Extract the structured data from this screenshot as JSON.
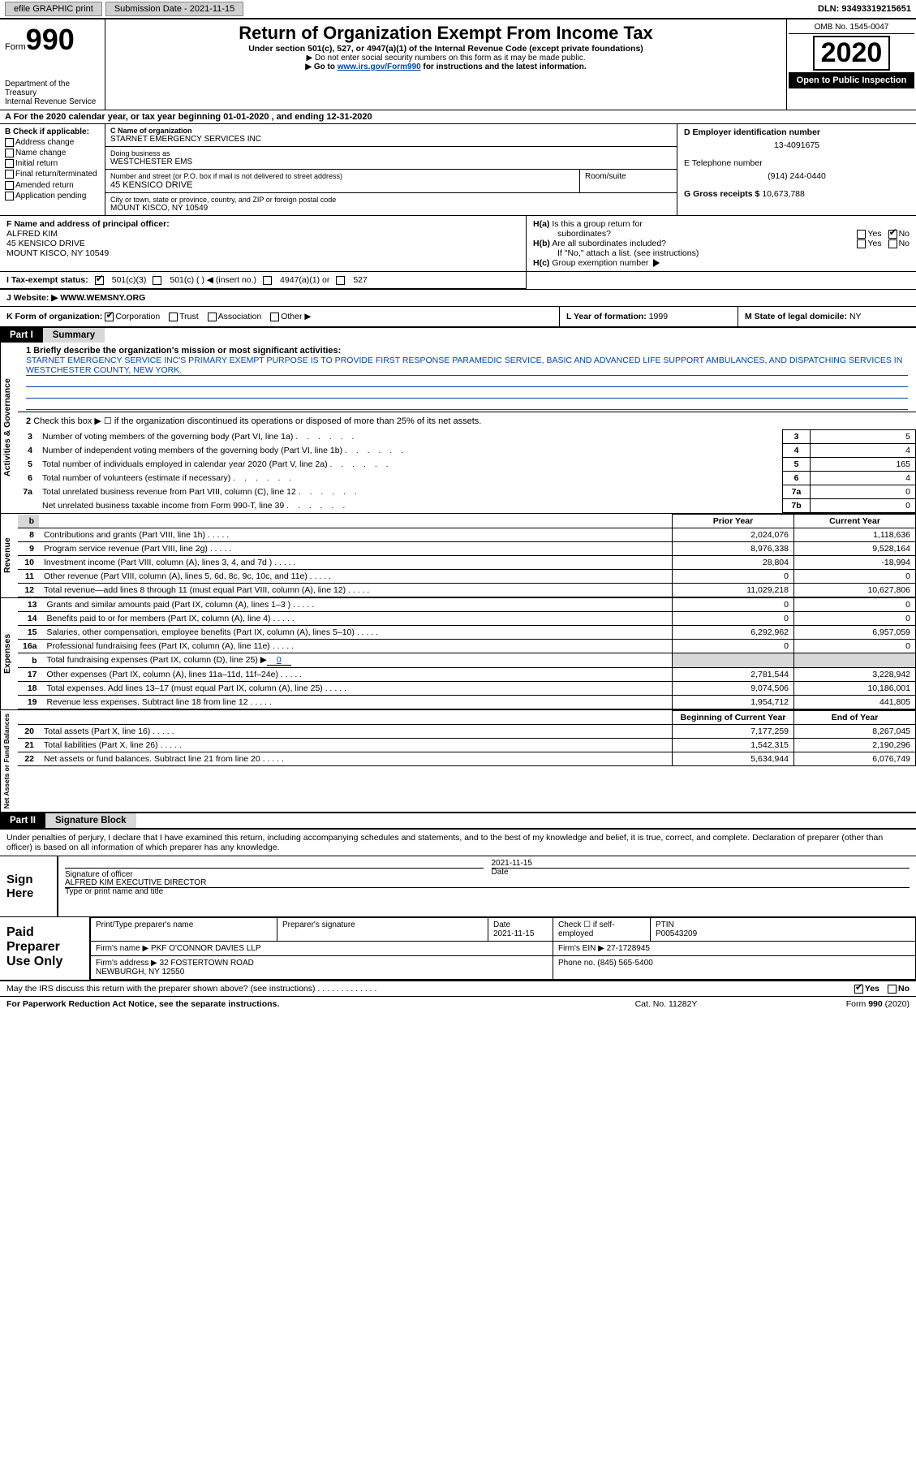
{
  "topbar": {
    "efile": "efile GRAPHIC print",
    "sub_label": "Submission Date - 2021-11-15",
    "dln": "DLN: 93493319215651"
  },
  "header": {
    "form_label": "Form",
    "form_number": "990",
    "dept": "Department of the Treasury\nInternal Revenue Service",
    "title": "Return of Organization Exempt From Income Tax",
    "subtitle": "Under section 501(c), 527, or 4947(a)(1) of the Internal Revenue Code (except private foundations)",
    "arrow1": "▶ Do not enter social security numbers on this form as it may be made public.",
    "arrow2_pre": "▶ Go to ",
    "arrow2_link": "www.irs.gov/Form990",
    "arrow2_post": " for instructions and the latest information.",
    "omb": "OMB No. 1545-0047",
    "year": "2020",
    "inspection": "Open to Public Inspection"
  },
  "period": "A For the 2020 calendar year, or tax year beginning 01-01-2020    , and ending 12-31-2020",
  "block_b": {
    "label": "B Check if applicable:",
    "items": [
      "Address change",
      "Name change",
      "Initial return",
      "Final return/terminated",
      "Amended return",
      "Application pending"
    ]
  },
  "block_c": {
    "name_label": "C Name of organization",
    "name": "STARNET EMERGENCY SERVICES INC",
    "dba_label": "Doing business as",
    "dba": "WESTCHESTER EMS",
    "addr_label": "Number and street (or P.O. box if mail is not delivered to street address)",
    "addr": "45 KENSICO DRIVE",
    "room_label": "Room/suite",
    "city_label": "City or town, state or province, country, and ZIP or foreign postal code",
    "city": "MOUNT KISCO, NY  10549"
  },
  "block_d": {
    "ein_label": "D Employer identification number",
    "ein": "13-4091675",
    "phone_label": "E Telephone number",
    "phone": "(914) 244-0440",
    "gross_label": "G Gross receipts $",
    "gross": "10,673,788"
  },
  "block_f": {
    "label": "F Name and address of principal officer:",
    "name": "ALFRED KIM",
    "addr1": "45 KENSICO DRIVE",
    "addr2": "MOUNT KISCO, NY  10549"
  },
  "block_h": {
    "ha_label": "H(a)  Is this a group return for subordinates?",
    "hb_label": "H(b)  Are all subordinates included?",
    "hb_note": "If \"No,\" attach a list. (see instructions)",
    "hc_label": "H(c)  Group exemption number ▶",
    "yes": "Yes",
    "no": "No"
  },
  "block_i": {
    "label": "I    Tax-exempt status:",
    "opts": [
      "501(c)(3)",
      "501(c) (   ) ◀ (insert no.)",
      "4947(a)(1) or",
      "527"
    ]
  },
  "block_j": {
    "label": "J   Website: ▶",
    "value": "WWW.WEMSNY.ORG"
  },
  "block_k": {
    "label": "K Form of organization:",
    "opts": [
      "Corporation",
      "Trust",
      "Association",
      "Other ▶"
    ]
  },
  "block_l": {
    "label": "L Year of formation:",
    "value": "1999"
  },
  "block_m": {
    "label": "M State of legal domicile:",
    "value": "NY"
  },
  "part1_tab": "Part I",
  "part1_title": "Summary",
  "gov_label": "Activities & Governance",
  "rev_label": "Revenue",
  "exp_label": "Expenses",
  "net_label": "Net Assets or Fund Balances",
  "line1_label": "1   Briefly describe the organization's mission or most significant activities:",
  "mission": "STARNET EMERGENCY SERVICE INC'S PRIMARY EXEMPT PURPOSE IS TO PROVIDE FIRST RESPONSE PARAMEDIC SERVICE, BASIC AND ADVANCED LIFE SUPPORT AMBULANCES, AND DISPATCHING SERVICES IN WESTCHESTER COUNTY, NEW YORK.",
  "line2_label": "Check this box ▶ ☐ if the organization discontinued its operations or disposed of more than 25% of its net assets.",
  "gov_rows": [
    {
      "n": "3",
      "desc": "Number of voting members of the governing body (Part VI, line 1a)",
      "box": "3",
      "val": "5"
    },
    {
      "n": "4",
      "desc": "Number of independent voting members of the governing body (Part VI, line 1b)",
      "box": "4",
      "val": "4"
    },
    {
      "n": "5",
      "desc": "Total number of individuals employed in calendar year 2020 (Part V, line 2a)",
      "box": "5",
      "val": "165"
    },
    {
      "n": "6",
      "desc": "Total number of volunteers (estimate if necessary)",
      "box": "6",
      "val": "4"
    },
    {
      "n": "7a",
      "desc": "Total unrelated business revenue from Part VIII, column (C), line 12",
      "box": "7a",
      "val": "0"
    },
    {
      "n": "",
      "desc": "Net unrelated business taxable income from Form 990-T, line 39",
      "box": "7b",
      "val": "0"
    }
  ],
  "col_headers": {
    "prior": "Prior Year",
    "current": "Current Year",
    "begin": "Beginning of Current Year",
    "end": "End of Year"
  },
  "rev_rows": [
    {
      "n": "8",
      "desc": "Contributions and grants (Part VIII, line 1h)",
      "prior": "2,024,076",
      "current": "1,118,636"
    },
    {
      "n": "9",
      "desc": "Program service revenue (Part VIII, line 2g)",
      "prior": "8,976,338",
      "current": "9,528,164"
    },
    {
      "n": "10",
      "desc": "Investment income (Part VIII, column (A), lines 3, 4, and 7d )",
      "prior": "28,804",
      "current": "-18,994"
    },
    {
      "n": "11",
      "desc": "Other revenue (Part VIII, column (A), lines 5, 6d, 8c, 9c, 10c, and 11e)",
      "prior": "0",
      "current": "0"
    },
    {
      "n": "12",
      "desc": "Total revenue—add lines 8 through 11 (must equal Part VIII, column (A), line 12)",
      "prior": "11,029,218",
      "current": "10,627,806"
    }
  ],
  "exp_rows": [
    {
      "n": "13",
      "desc": "Grants and similar amounts paid (Part IX, column (A), lines 1–3 )",
      "prior": "0",
      "current": "0"
    },
    {
      "n": "14",
      "desc": "Benefits paid to or for members (Part IX, column (A), line 4)",
      "prior": "0",
      "current": "0"
    },
    {
      "n": "15",
      "desc": "Salaries, other compensation, employee benefits (Part IX, column (A), lines 5–10)",
      "prior": "6,292,962",
      "current": "6,957,059"
    },
    {
      "n": "16a",
      "desc": "Professional fundraising fees (Part IX, column (A), line 11e)",
      "prior": "0",
      "current": "0"
    }
  ],
  "line16b": {
    "n": "b",
    "desc": "Total fundraising expenses (Part IX, column (D), line 25) ▶",
    "val": "0"
  },
  "exp_rows2": [
    {
      "n": "17",
      "desc": "Other expenses (Part IX, column (A), lines 11a–11d, 11f–24e)",
      "prior": "2,781,544",
      "current": "3,228,942"
    },
    {
      "n": "18",
      "desc": "Total expenses. Add lines 13–17 (must equal Part IX, column (A), line 25)",
      "prior": "9,074,506",
      "current": "10,186,001"
    },
    {
      "n": "19",
      "desc": "Revenue less expenses. Subtract line 18 from line 12",
      "prior": "1,954,712",
      "current": "441,805"
    }
  ],
  "net_rows": [
    {
      "n": "20",
      "desc": "Total assets (Part X, line 16)",
      "prior": "7,177,259",
      "current": "8,267,045"
    },
    {
      "n": "21",
      "desc": "Total liabilities (Part X, line 26)",
      "prior": "1,542,315",
      "current": "2,190,296"
    },
    {
      "n": "22",
      "desc": "Net assets or fund balances. Subtract line 21 from line 20",
      "prior": "5,634,944",
      "current": "6,076,749"
    }
  ],
  "part2_tab": "Part II",
  "part2_title": "Signature Block",
  "penalty": "Under penalties of perjury, I declare that I have examined this return, including accompanying schedules and statements, and to the best of my knowledge and belief, it is true, correct, and complete. Declaration of preparer (other than officer) is based on all information of which preparer has any knowledge.",
  "sign_here": "Sign Here",
  "sig_officer": "Signature of officer",
  "sig_date_label": "Date",
  "sig_date": "2021-11-15",
  "sig_name": "ALFRED KIM  EXECUTIVE DIRECTOR",
  "sig_type_label": "Type or print name and title",
  "paid_label": "Paid Preparer Use Only",
  "prep": {
    "print_label": "Print/Type preparer's name",
    "sig_label": "Preparer's signature",
    "date_label": "Date",
    "date": "2021-11-15",
    "check_label": "Check ☐ if self-employed",
    "ptin_label": "PTIN",
    "ptin": "P00543209",
    "firm_name_label": "Firm's name   ▶",
    "firm_name": "PKF O'CONNOR DAVIES LLP",
    "firm_ein_label": "Firm's EIN ▶",
    "firm_ein": "27-1728945",
    "firm_addr_label": "Firm's address ▶",
    "firm_addr": "32 FOSTERTOWN ROAD\nNEWBURGH, NY  12550",
    "phone_label": "Phone no.",
    "phone": "(845) 565-5400"
  },
  "discuss": "May the IRS discuss this return with the preparer shown above? (see instructions)",
  "discuss_yes": "Yes",
  "discuss_no": "No",
  "footer_left": "For Paperwork Reduction Act Notice, see the separate instructions.",
  "footer_center": "Cat. No. 11282Y",
  "footer_right": "Form 990 (2020)"
}
